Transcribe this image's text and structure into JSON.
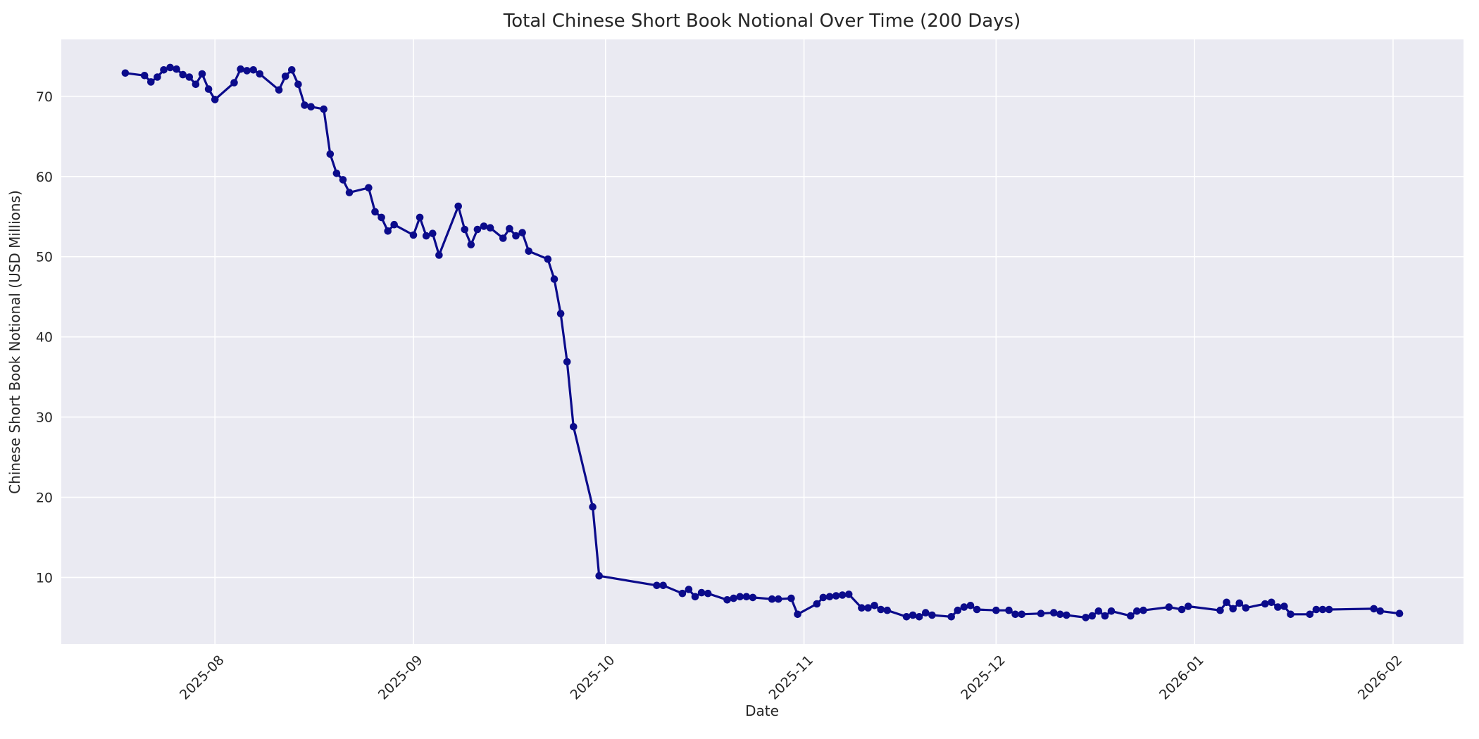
{
  "chart_data": {
    "type": "line",
    "title": "Total Chinese Short Book Notional Over Time (200 Days)",
    "xlabel": "Date",
    "ylabel": "Chinese Short Book Notional (USD Millions)",
    "x_tick_labels": [
      "2025-08",
      "2025-09",
      "2025-10",
      "2025-11",
      "2025-12",
      "2026-01",
      "2026-02"
    ],
    "y_ticks": [
      10,
      20,
      30,
      40,
      50,
      60,
      70
    ],
    "start_date": "2025-07-18",
    "xlim_days": [
      -10,
      209
    ],
    "ylim": [
      1.7,
      77.1
    ],
    "grid": true,
    "legend": "none",
    "plot_bg": "#eaeaf2",
    "grid_color": "#ffffff",
    "line_color": "#0b0b8b",
    "text_color": "#262626",
    "marker": "o",
    "series": [
      {
        "name": "Total Chinese Short Book Notional (USD Millions)",
        "points": [
          [
            "2025-07-18",
            72.9
          ],
          [
            "2025-07-21",
            72.6
          ],
          [
            "2025-07-22",
            71.8
          ],
          [
            "2025-07-23",
            72.4
          ],
          [
            "2025-07-24",
            73.3
          ],
          [
            "2025-07-25",
            73.6
          ],
          [
            "2025-07-26",
            73.4
          ],
          [
            "2025-07-27",
            72.7
          ],
          [
            "2025-07-28",
            72.4
          ],
          [
            "2025-07-29",
            71.5
          ],
          [
            "2025-07-30",
            72.8
          ],
          [
            "2025-07-31",
            70.9
          ],
          [
            "2025-08-01",
            69.6
          ],
          [
            "2025-08-04",
            71.7
          ],
          [
            "2025-08-05",
            73.4
          ],
          [
            "2025-08-06",
            73.2
          ],
          [
            "2025-08-07",
            73.3
          ],
          [
            "2025-08-08",
            72.8
          ],
          [
            "2025-08-11",
            70.8
          ],
          [
            "2025-08-12",
            72.5
          ],
          [
            "2025-08-13",
            73.3
          ],
          [
            "2025-08-14",
            71.5
          ],
          [
            "2025-08-15",
            68.9
          ],
          [
            "2025-08-16",
            68.7
          ],
          [
            "2025-08-18",
            68.4
          ],
          [
            "2025-08-19",
            62.8
          ],
          [
            "2025-08-20",
            60.4
          ],
          [
            "2025-08-21",
            59.6
          ],
          [
            "2025-08-22",
            58.0
          ],
          [
            "2025-08-25",
            58.6
          ],
          [
            "2025-08-26",
            55.6
          ],
          [
            "2025-08-27",
            54.9
          ],
          [
            "2025-08-28",
            53.2
          ],
          [
            "2025-08-29",
            54.0
          ],
          [
            "2025-09-01",
            52.7
          ],
          [
            "2025-09-02",
            54.9
          ],
          [
            "2025-09-03",
            52.6
          ],
          [
            "2025-09-04",
            52.9
          ],
          [
            "2025-09-05",
            50.2
          ],
          [
            "2025-09-08",
            56.3
          ],
          [
            "2025-09-09",
            53.4
          ],
          [
            "2025-09-10",
            51.5
          ],
          [
            "2025-09-11",
            53.4
          ],
          [
            "2025-09-12",
            53.8
          ],
          [
            "2025-09-13",
            53.6
          ],
          [
            "2025-09-15",
            52.3
          ],
          [
            "2025-09-16",
            53.5
          ],
          [
            "2025-09-17",
            52.6
          ],
          [
            "2025-09-18",
            53.0
          ],
          [
            "2025-09-19",
            50.7
          ],
          [
            "2025-09-22",
            49.7
          ],
          [
            "2025-09-23",
            47.2
          ],
          [
            "2025-09-24",
            42.9
          ],
          [
            "2025-09-25",
            36.9
          ],
          [
            "2025-09-26",
            28.8
          ],
          [
            "2025-09-29",
            18.8
          ],
          [
            "2025-09-30",
            10.2
          ],
          [
            "2025-10-09",
            9.0
          ],
          [
            "2025-10-10",
            9.0
          ],
          [
            "2025-10-13",
            8.0
          ],
          [
            "2025-10-14",
            8.5
          ],
          [
            "2025-10-15",
            7.6
          ],
          [
            "2025-10-16",
            8.1
          ],
          [
            "2025-10-17",
            8.0
          ],
          [
            "2025-10-20",
            7.2
          ],
          [
            "2025-10-21",
            7.4
          ],
          [
            "2025-10-22",
            7.6
          ],
          [
            "2025-10-23",
            7.6
          ],
          [
            "2025-10-24",
            7.5
          ],
          [
            "2025-10-27",
            7.3
          ],
          [
            "2025-10-28",
            7.3
          ],
          [
            "2025-10-30",
            7.4
          ],
          [
            "2025-10-31",
            5.4
          ],
          [
            "2025-11-03",
            6.7
          ],
          [
            "2025-11-04",
            7.5
          ],
          [
            "2025-11-05",
            7.6
          ],
          [
            "2025-11-06",
            7.7
          ],
          [
            "2025-11-07",
            7.8
          ],
          [
            "2025-11-08",
            7.9
          ],
          [
            "2025-11-10",
            6.2
          ],
          [
            "2025-11-11",
            6.2
          ],
          [
            "2025-11-12",
            6.5
          ],
          [
            "2025-11-13",
            6.0
          ],
          [
            "2025-11-14",
            5.9
          ],
          [
            "2025-11-17",
            5.1
          ],
          [
            "2025-11-18",
            5.3
          ],
          [
            "2025-11-19",
            5.1
          ],
          [
            "2025-11-20",
            5.6
          ],
          [
            "2025-11-21",
            5.3
          ],
          [
            "2025-11-24",
            5.1
          ],
          [
            "2025-11-25",
            5.9
          ],
          [
            "2025-11-26",
            6.3
          ],
          [
            "2025-11-27",
            6.5
          ],
          [
            "2025-11-28",
            6.0
          ],
          [
            "2025-12-01",
            5.9
          ],
          [
            "2025-12-03",
            5.9
          ],
          [
            "2025-12-04",
            5.4
          ],
          [
            "2025-12-05",
            5.4
          ],
          [
            "2025-12-08",
            5.5
          ],
          [
            "2025-12-10",
            5.6
          ],
          [
            "2025-12-11",
            5.4
          ],
          [
            "2025-12-12",
            5.3
          ],
          [
            "2025-12-15",
            5.0
          ],
          [
            "2025-12-16",
            5.2
          ],
          [
            "2025-12-17",
            5.8
          ],
          [
            "2025-12-18",
            5.2
          ],
          [
            "2025-12-19",
            5.8
          ],
          [
            "2025-12-22",
            5.2
          ],
          [
            "2025-12-23",
            5.8
          ],
          [
            "2025-12-24",
            5.9
          ],
          [
            "2025-12-28",
            6.3
          ],
          [
            "2025-12-30",
            6.0
          ],
          [
            "2025-12-31",
            6.4
          ],
          [
            "2026-01-05",
            5.9
          ],
          [
            "2026-01-06",
            6.9
          ],
          [
            "2026-01-07",
            6.1
          ],
          [
            "2026-01-08",
            6.8
          ],
          [
            "2026-01-09",
            6.2
          ],
          [
            "2026-01-12",
            6.7
          ],
          [
            "2026-01-13",
            6.9
          ],
          [
            "2026-01-14",
            6.3
          ],
          [
            "2026-01-15",
            6.4
          ],
          [
            "2026-01-16",
            5.4
          ],
          [
            "2026-01-19",
            5.4
          ],
          [
            "2026-01-20",
            6.0
          ],
          [
            "2026-01-21",
            6.0
          ],
          [
            "2026-01-22",
            6.0
          ],
          [
            "2026-01-29",
            6.1
          ],
          [
            "2026-01-30",
            5.8
          ],
          [
            "2026-02-02",
            5.5
          ]
        ]
      }
    ]
  }
}
